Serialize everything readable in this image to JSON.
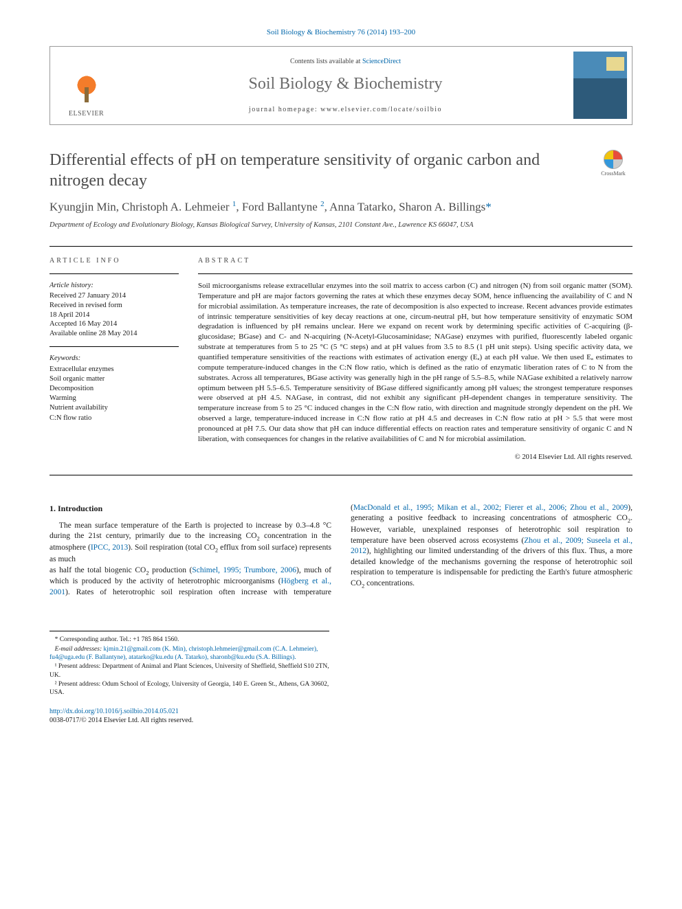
{
  "header": {
    "citation": "Soil Biology & Biochemistry 76 (2014) 193–200",
    "contents_prefix": "Contents lists available at ",
    "contents_link": "ScienceDirect",
    "journal_name": "Soil Biology & Biochemistry",
    "homepage_prefix": "journal homepage: ",
    "homepage_url": "www.elsevier.com/locate/soilbio",
    "publisher_name": "ELSEVIER"
  },
  "title": "Differential effects of pH on temperature sensitivity of organic carbon and nitrogen decay",
  "crossmark_label": "CrossMark",
  "authors_html": "Kyungjin Min, Christoph A. Lehmeier <sup>1</sup>, Ford Ballantyne <sup>2</sup>, Anna Tatarko, Sharon A. Billings<span class='ast'>*</span>",
  "affiliation": "Department of Ecology and Evolutionary Biology, Kansas Biological Survey, University of Kansas, 2101 Constant Ave., Lawrence KS 66047, USA",
  "article_info": {
    "heading": "ARTICLE INFO",
    "history_label": "Article history:",
    "history": [
      "Received 27 January 2014",
      "Received in revised form",
      "18 April 2014",
      "Accepted 16 May 2014",
      "Available online 28 May 2014"
    ],
    "keywords_label": "Keywords:",
    "keywords": [
      "Extracellular enzymes",
      "Soil organic matter",
      "Decomposition",
      "Warming",
      "Nutrient availability",
      "C:N flow ratio"
    ]
  },
  "abstract": {
    "heading": "ABSTRACT",
    "text": "Soil microorganisms release extracellular enzymes into the soil matrix to access carbon (C) and nitrogen (N) from soil organic matter (SOM). Temperature and pH are major factors governing the rates at which these enzymes decay SOM, hence influencing the availability of C and N for microbial assimilation. As temperature increases, the rate of decomposition is also expected to increase. Recent advances provide estimates of intrinsic temperature sensitivities of key decay reactions at one, circum-neutral pH, but how temperature sensitivity of enzymatic SOM degradation is influenced by pH remains unclear. Here we expand on recent work by determining specific activities of C-acquiring (β-glucosidase; BGase) and C- and N-acquiring (N-Acetyl-Glucosaminidase; NAGase) enzymes with purified, fluorescently labeled organic substrate at temperatures from 5 to 25 °C (5 °C steps) and at pH values from 3.5 to 8.5 (1 pH unit steps). Using specific activity data, we quantified temperature sensitivities of the reactions with estimates of activation energy (Eₐ) at each pH value. We then used Eₐ estimates to compute temperature-induced changes in the C:N flow ratio, which is defined as the ratio of enzymatic liberation rates of C to N from the substrates. Across all temperatures, BGase activity was generally high in the pH range of 5.5–8.5, while NAGase exhibited a relatively narrow optimum between pH 5.5–6.5. Temperature sensitivity of BGase differed significantly among pH values; the strongest temperature responses were observed at pH 4.5. NAGase, in contrast, did not exhibit any significant pH-dependent changes in temperature sensitivity. The temperature increase from 5 to 25 °C induced changes in the C:N flow ratio, with direction and magnitude strongly dependent on the pH. We observed a large, temperature-induced increase in C:N flow ratio at pH 4.5 and decreases in C:N flow ratio at pH > 5.5 that were most pronounced at pH 7.5. Our data show that pH can induce differential effects on reaction rates and temperature sensitivity of organic C and N liberation, with consequences for changes in the relative availabilities of C and N for microbial assimilation.",
    "copyright": "© 2014 Elsevier Ltd. All rights reserved."
  },
  "body": {
    "section_heading": "1. Introduction",
    "para1_pre": "The mean surface temperature of the Earth is projected to increase by 0.3–4.8 °C during the 21st century, primarily due to the increasing CO",
    "para1_mid": " concentration in the atmosphere (",
    "para1_cite1": "IPCC, 2013",
    "para1_post1": "). Soil respiration (total CO",
    "para1_post2": " efflux from soil surface) represents as much",
    "para2_a": "as half the total biogenic CO",
    "para2_b": " production (",
    "cite2": "Schimel, 1995; Trumbore, 2006",
    "para2_c": "), much of which is produced by the activity of heterotrophic microorganisms (",
    "cite3": "Högberg et al., 2001",
    "para2_d": "). Rates of heterotrophic soil respiration often increase with temperature (",
    "cite4": "MacDonald et al., 1995; Mikan et al., 2002; Fierer et al., 2006; Zhou et al., 2009",
    "para2_e": "), generating a positive feedback to increasing concentrations of atmospheric CO",
    "para2_f": ". However, variable, unexplained responses of heterotrophic soil respiration to temperature have been observed across ecosystems (",
    "cite5": "Zhou et al., 2009; Suseela et al., 2012",
    "para2_g": "), highlighting our limited understanding of the drivers of this flux. Thus, a more detailed knowledge of the mechanisms governing the response of heterotrophic soil respiration to temperature is indispensable for predicting the Earth's future atmospheric CO",
    "para2_h": " concentrations."
  },
  "footnotes": {
    "corr": "* Corresponding author. Tel.: +1 785 864 1560.",
    "emails_label": "E-mail addresses: ",
    "emails": "kjmin.21@gmail.com (K. Min), christoph.lehmeier@gmail.com (C.A. Lehmeier), fu4@uga.edu (F. Ballantyne), atatarko@ku.edu (A. Tatarko), sharonb@ku.edu (S.A. Billings).",
    "note1": "¹ Present address: Department of Animal and Plant Sciences, University of Sheffield, Sheffield S10 2TN, UK.",
    "note2": "² Present address: Odum School of Ecology, University of Georgia, 140 E. Green St., Athens, GA 30602, USA."
  },
  "doi": {
    "url": "http://dx.doi.org/10.1016/j.soilbio.2014.05.021",
    "issn": "0038-0717/© 2014 Elsevier Ltd. All rights reserved."
  },
  "colors": {
    "link": "#0066aa",
    "text_gray": "#4a4a4a",
    "rule": "#000000"
  }
}
